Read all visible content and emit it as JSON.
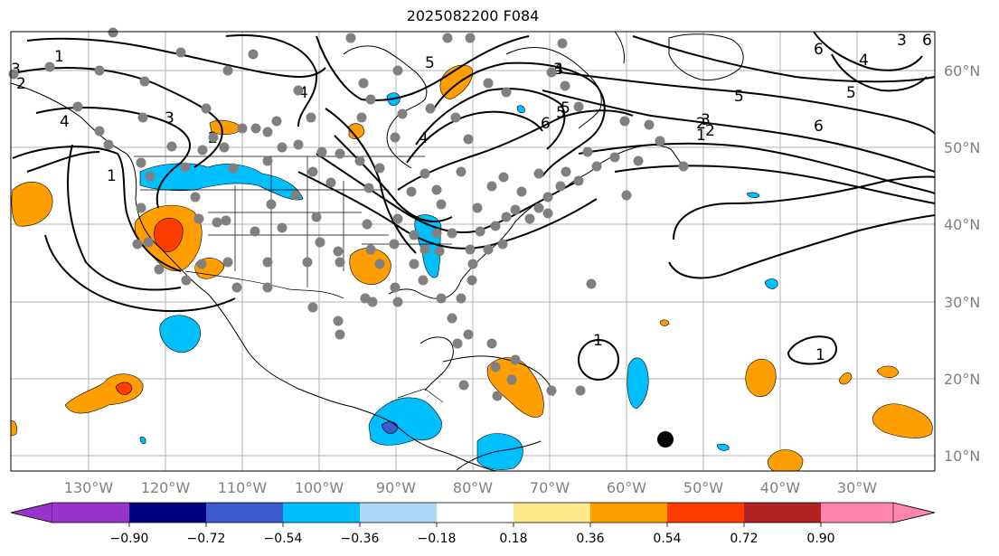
{
  "title": "2025082200 F084",
  "lon_labels": [
    "130°W",
    "120°W",
    "110°W",
    "100°W",
    "90°W",
    "80°W",
    "70°W",
    "60°W",
    "50°W",
    "40°W",
    "30°W"
  ],
  "lat_labels": [
    "60°N",
    "50°N",
    "40°N",
    "30°N",
    "20°N",
    "10°N"
  ],
  "contour_labels": [
    "1",
    "2",
    "3",
    "4",
    "5",
    "6",
    "1",
    "2",
    "3",
    "4",
    "5",
    "6",
    "1",
    "1",
    "4",
    "3",
    "5",
    "6",
    "5",
    "4",
    "3",
    "2",
    "6",
    "5",
    "4",
    "3",
    "1",
    "2"
  ],
  "colorbar": {
    "ticks": [
      "−0.90",
      "−0.72",
      "−0.54",
      "−0.36",
      "−0.18",
      "0.18",
      "0.36",
      "0.54",
      "0.72",
      "0.90"
    ],
    "colors": [
      "#9933cc",
      "#000080",
      "#3b5bcc",
      "#00bfff",
      "#add8f7",
      "#ffffff",
      "#fde98a",
      "#ff9e00",
      "#ff3d00",
      "#b22222",
      "#ff85b0"
    ]
  },
  "palette": {
    "ocean_bg": "#ffffff",
    "grid": "#b3b3b3",
    "stations": "#808080",
    "contours": "#000000",
    "positive_fill": "#ff9e00",
    "negative_fill": "#00bfff",
    "marker": "#000000"
  }
}
